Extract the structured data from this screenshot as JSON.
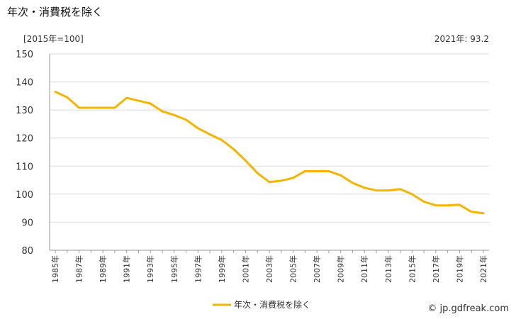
{
  "header": {
    "title": "年次・消費税を除く",
    "unit_label": "[2015年=100]",
    "latest_label": "2021年: 93.2"
  },
  "source": "© jp.gdfreak.com",
  "colors": {
    "series": "#f5b400",
    "grid": "#d9d9d9",
    "axis": "#999999"
  },
  "chart_data": {
    "type": "line",
    "title": "年次・消費税を除く",
    "xlabel": "",
    "ylabel": "[2015年=100]",
    "ylim": [
      80,
      150
    ],
    "yticks": [
      80,
      90,
      100,
      110,
      120,
      130,
      140,
      150
    ],
    "grid": true,
    "legend_position": "bottom-center",
    "x": [
      1985,
      1986,
      1987,
      1988,
      1989,
      1990,
      1991,
      1992,
      1993,
      1994,
      1995,
      1996,
      1997,
      1998,
      1999,
      2000,
      2001,
      2002,
      2003,
      2004,
      2005,
      2006,
      2007,
      2008,
      2009,
      2010,
      2011,
      2012,
      2013,
      2014,
      2015,
      2016,
      2017,
      2018,
      2019,
      2020,
      2021
    ],
    "x_tick_labels": [
      "1985年",
      "1987年",
      "1989年",
      "1991年",
      "1993年",
      "1995年",
      "1997年",
      "1999年",
      "2001年",
      "2003年",
      "2005年",
      "2007年",
      "2009年",
      "2011年",
      "2013年",
      "2015年",
      "2017年",
      "2019年",
      "2021年"
    ],
    "series": [
      {
        "name": "年次・消費税を除く",
        "values": [
          136.5,
          134.5,
          130.8,
          130.8,
          130.8,
          130.8,
          134.3,
          133.3,
          132.3,
          129.5,
          128.2,
          126.5,
          123.5,
          121.3,
          119.3,
          116.0,
          112.0,
          107.5,
          104.3,
          104.8,
          105.8,
          108.2,
          108.2,
          108.2,
          106.7,
          104.0,
          102.3,
          101.3,
          101.3,
          101.8,
          100.0,
          97.3,
          96.0,
          96.0,
          96.2,
          93.7,
          93.2
        ]
      }
    ]
  }
}
